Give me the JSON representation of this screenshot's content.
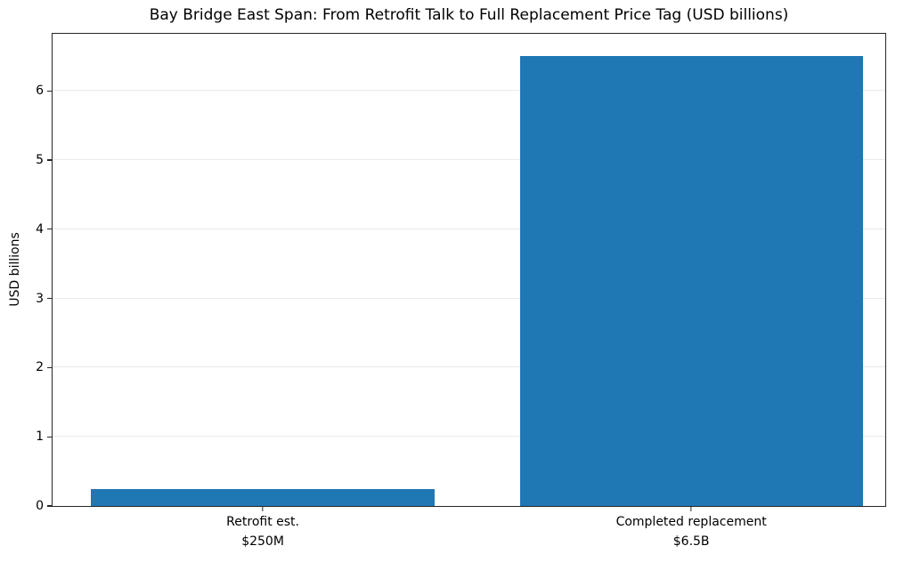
{
  "chart_data": {
    "type": "bar",
    "title": "Bay Bridge East Span: From Retrofit Talk to Full Replacement Price Tag (USD billions)",
    "categories": [
      "Retrofit est.",
      "Completed replacement"
    ],
    "category_sublabels": [
      "$250M",
      "$6.5B"
    ],
    "values": [
      0.25,
      6.5
    ],
    "xlabel": "",
    "ylabel": "USD billions",
    "ylim": [
      0,
      6.825
    ],
    "yticks": [
      0,
      1,
      2,
      3,
      4,
      5,
      6
    ],
    "bar_color": "#1f77b4",
    "grid": "horizontal",
    "grid_color": "#e9e9e9",
    "legend": "none"
  }
}
